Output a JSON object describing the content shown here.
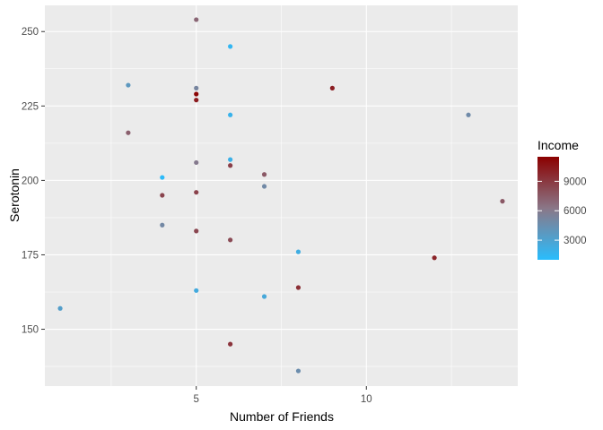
{
  "chart_data": {
    "type": "scatter",
    "title": "",
    "xlabel": "Number of Friends",
    "ylabel": "Serotonin",
    "xlim": [
      0.55,
      14.45
    ],
    "ylim": [
      130.9,
      258.8
    ],
    "x_ticks": [
      5,
      10
    ],
    "x_ticks_minor": [
      2.5,
      7.5,
      12.5
    ],
    "y_ticks": [
      150,
      175,
      200,
      225,
      250
    ],
    "y_ticks_minor": [
      137.5,
      162.5,
      187.5,
      212.5,
      237.5
    ],
    "grid": true,
    "panel_background": "#ebebeb",
    "grid_color": "#ffffff",
    "color_scale": {
      "name": "Income",
      "low_color": "#29BDFD",
      "mid_color": "#8A7788",
      "high_color": "#8B0000",
      "min": 1000,
      "max": 11500,
      "breaks": [
        3000,
        6000,
        9000
      ],
      "legend_position": "right"
    },
    "points": [
      {
        "x": 1,
        "y": 157,
        "income": 3300
      },
      {
        "x": 3,
        "y": 232,
        "income": 3800
      },
      {
        "x": 3,
        "y": 216,
        "income": 7300
      },
      {
        "x": 4,
        "y": 201,
        "income": 1200
      },
      {
        "x": 4,
        "y": 195,
        "income": 8500
      },
      {
        "x": 4,
        "y": 185,
        "income": 5000
      },
      {
        "x": 5,
        "y": 254,
        "income": 7000
      },
      {
        "x": 5,
        "y": 231,
        "income": 5200
      },
      {
        "x": 5,
        "y": 229,
        "income": 11300
      },
      {
        "x": 5,
        "y": 227,
        "income": 10300
      },
      {
        "x": 5,
        "y": 206,
        "income": 6000
      },
      {
        "x": 5,
        "y": 196,
        "income": 8600
      },
      {
        "x": 5,
        "y": 183,
        "income": 8400
      },
      {
        "x": 5,
        "y": 163,
        "income": 2400
      },
      {
        "x": 6,
        "y": 245,
        "income": 1500
      },
      {
        "x": 6,
        "y": 222,
        "income": 1800
      },
      {
        "x": 6,
        "y": 207,
        "income": 2000
      },
      {
        "x": 6,
        "y": 205,
        "income": 8700
      },
      {
        "x": 6,
        "y": 180,
        "income": 8200
      },
      {
        "x": 6,
        "y": 145,
        "income": 9200
      },
      {
        "x": 7,
        "y": 202,
        "income": 7600
      },
      {
        "x": 7,
        "y": 198,
        "income": 4900
      },
      {
        "x": 7,
        "y": 161,
        "income": 2600
      },
      {
        "x": 8,
        "y": 176,
        "income": 2200
      },
      {
        "x": 8,
        "y": 164,
        "income": 9400
      },
      {
        "x": 8,
        "y": 136,
        "income": 4600
      },
      {
        "x": 9,
        "y": 231,
        "income": 10200
      },
      {
        "x": 12,
        "y": 174,
        "income": 9900
      },
      {
        "x": 13,
        "y": 222,
        "income": 4800
      },
      {
        "x": 14,
        "y": 193,
        "income": 7600
      }
    ]
  }
}
